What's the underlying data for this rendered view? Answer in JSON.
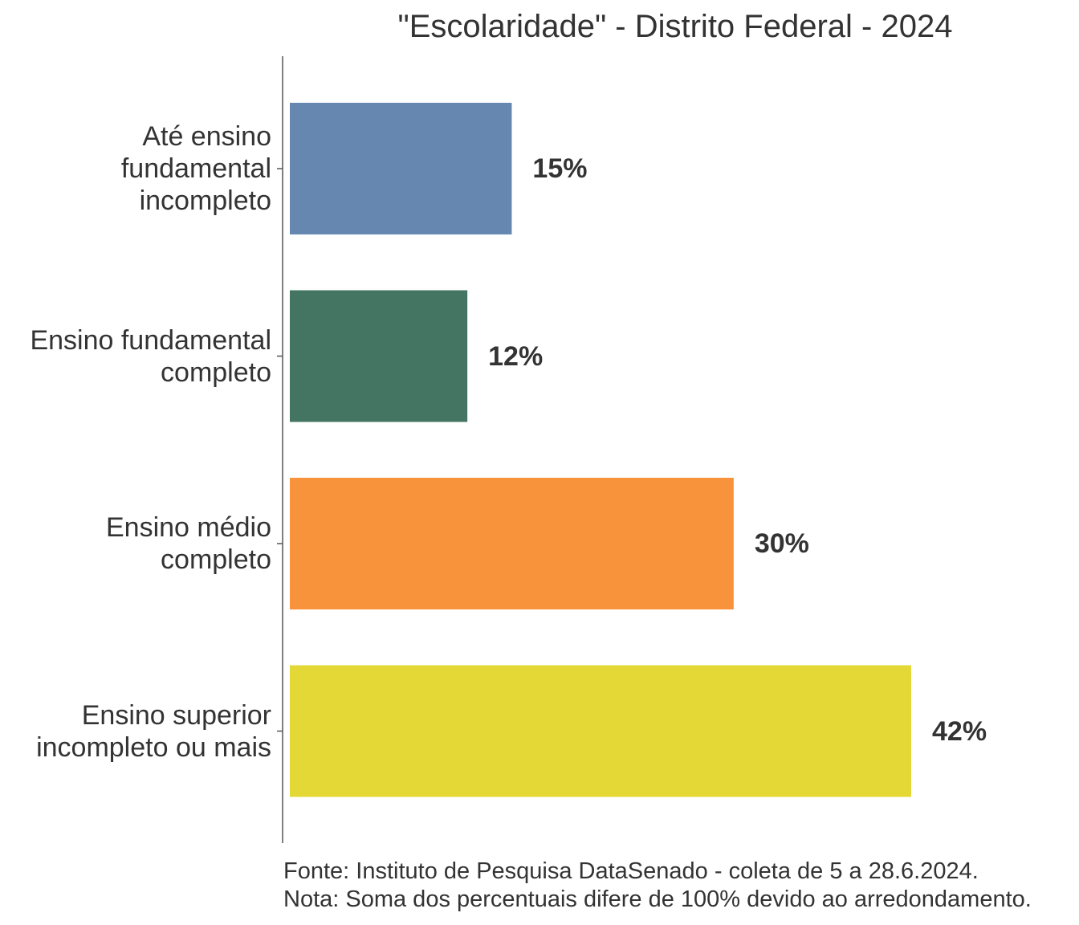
{
  "chart_data": {
    "type": "bar",
    "orientation": "horizontal",
    "title": "\"Escolaridade\" - Distrito Federal - 2024",
    "categories": [
      [
        "Até ensino",
        "fundamental",
        "incompleto"
      ],
      [
        "Ensino fundamental",
        "completo"
      ],
      [
        "Ensino médio",
        "completo"
      ],
      [
        "Ensino superior",
        "incompleto ou mais"
      ]
    ],
    "values": [
      15,
      12,
      30,
      42
    ],
    "value_labels": [
      "15%",
      "12%",
      "30%",
      "42%"
    ],
    "colors": [
      "#6688b0",
      "#447563",
      "#f8923b",
      "#e3d836"
    ],
    "xlim": [
      0,
      42
    ],
    "grid": false,
    "legend": "none"
  },
  "footer": {
    "source": "Fonte: Instituto de Pesquisa DataSenado - coleta de 5 a 28.6.2024.",
    "note": "Nota: Soma dos percentuais difere de 100% devido ao arredondamento."
  }
}
